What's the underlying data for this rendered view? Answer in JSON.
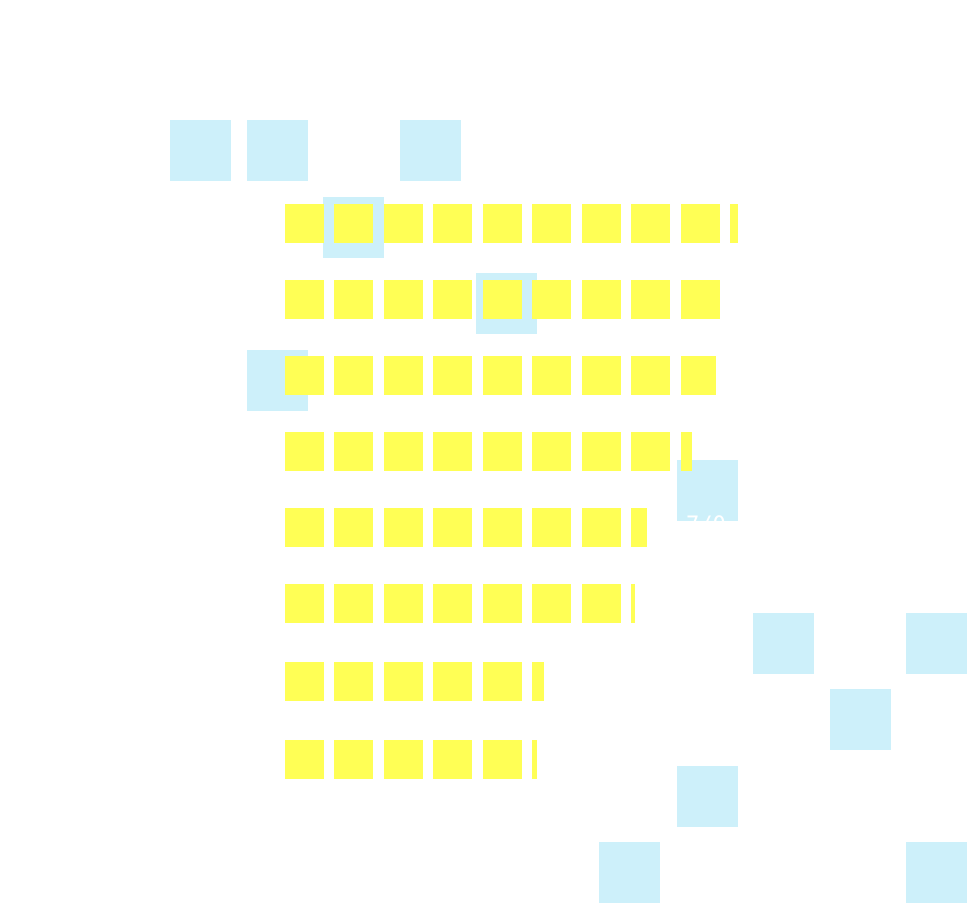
{
  "tile_label": "7/0"
}
